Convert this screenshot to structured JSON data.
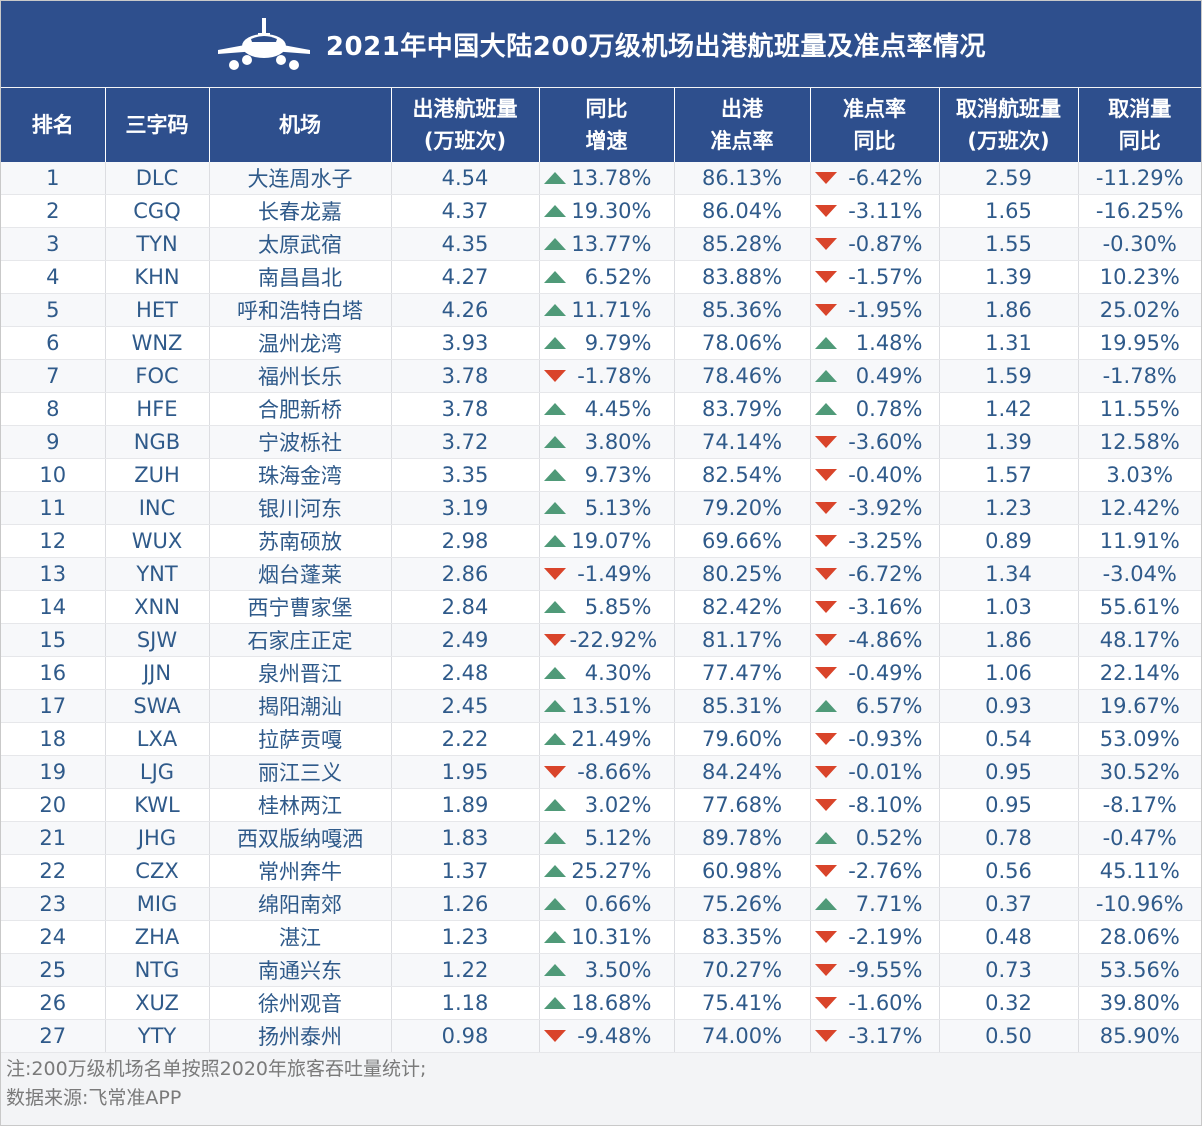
{
  "title": "2021年中国大陆200万级机场出港航班量及准点率情况",
  "colors": {
    "header_bg": "#2e4f8d",
    "up": "#4f9a78",
    "down": "#d9442a",
    "text": "#2f5a8a"
  },
  "columns": [
    {
      "l1": "排名",
      "l2": ""
    },
    {
      "l1": "三字码",
      "l2": ""
    },
    {
      "l1": "机场",
      "l2": ""
    },
    {
      "l1": "出港航班量",
      "l2": "(万班次)"
    },
    {
      "l1": "同比",
      "l2": "增速"
    },
    {
      "l1": "出港",
      "l2": "准点率"
    },
    {
      "l1": "准点率",
      "l2": "同比"
    },
    {
      "l1": "取消航班量",
      "l2": "(万班次)"
    },
    {
      "l1": "取消量",
      "l2": "同比"
    }
  ],
  "rows": [
    {
      "rank": "1",
      "code": "DLC",
      "airport": "大连周水子",
      "flights": "4.54",
      "growth": "13.78%",
      "growth_dir": "up",
      "ontime": "86.13%",
      "ontime_yoy": "-6.42%",
      "ontime_dir": "down",
      "cancel": "2.59",
      "cancel_yoy": "-11.29%"
    },
    {
      "rank": "2",
      "code": "CGQ",
      "airport": "长春龙嘉",
      "flights": "4.37",
      "growth": "19.30%",
      "growth_dir": "up",
      "ontime": "86.04%",
      "ontime_yoy": "-3.11%",
      "ontime_dir": "down",
      "cancel": "1.65",
      "cancel_yoy": "-16.25%"
    },
    {
      "rank": "3",
      "code": "TYN",
      "airport": "太原武宿",
      "flights": "4.35",
      "growth": "13.77%",
      "growth_dir": "up",
      "ontime": "85.28%",
      "ontime_yoy": "-0.87%",
      "ontime_dir": "down",
      "cancel": "1.55",
      "cancel_yoy": "-0.30%"
    },
    {
      "rank": "4",
      "code": "KHN",
      "airport": "南昌昌北",
      "flights": "4.27",
      "growth": "6.52%",
      "growth_dir": "up",
      "ontime": "83.88%",
      "ontime_yoy": "-1.57%",
      "ontime_dir": "down",
      "cancel": "1.39",
      "cancel_yoy": "10.23%"
    },
    {
      "rank": "5",
      "code": "HET",
      "airport": "呼和浩特白塔",
      "flights": "4.26",
      "growth": "11.71%",
      "growth_dir": "up",
      "ontime": "85.36%",
      "ontime_yoy": "-1.95%",
      "ontime_dir": "down",
      "cancel": "1.86",
      "cancel_yoy": "25.02%"
    },
    {
      "rank": "6",
      "code": "WNZ",
      "airport": "温州龙湾",
      "flights": "3.93",
      "growth": "9.79%",
      "growth_dir": "up",
      "ontime": "78.06%",
      "ontime_yoy": "1.48%",
      "ontime_dir": "up",
      "cancel": "1.31",
      "cancel_yoy": "19.95%"
    },
    {
      "rank": "7",
      "code": "FOC",
      "airport": "福州长乐",
      "flights": "3.78",
      "growth": "-1.78%",
      "growth_dir": "down",
      "ontime": "78.46%",
      "ontime_yoy": "0.49%",
      "ontime_dir": "up",
      "cancel": "1.59",
      "cancel_yoy": "-1.78%"
    },
    {
      "rank": "8",
      "code": "HFE",
      "airport": "合肥新桥",
      "flights": "3.78",
      "growth": "4.45%",
      "growth_dir": "up",
      "ontime": "83.79%",
      "ontime_yoy": "0.78%",
      "ontime_dir": "up",
      "cancel": "1.42",
      "cancel_yoy": "11.55%"
    },
    {
      "rank": "9",
      "code": "NGB",
      "airport": "宁波栎社",
      "flights": "3.72",
      "growth": "3.80%",
      "growth_dir": "up",
      "ontime": "74.14%",
      "ontime_yoy": "-3.60%",
      "ontime_dir": "down",
      "cancel": "1.39",
      "cancel_yoy": "12.58%"
    },
    {
      "rank": "10",
      "code": "ZUH",
      "airport": "珠海金湾",
      "flights": "3.35",
      "growth": "9.73%",
      "growth_dir": "up",
      "ontime": "82.54%",
      "ontime_yoy": "-0.40%",
      "ontime_dir": "down",
      "cancel": "1.57",
      "cancel_yoy": "3.03%"
    },
    {
      "rank": "11",
      "code": "INC",
      "airport": "银川河东",
      "flights": "3.19",
      "growth": "5.13%",
      "growth_dir": "up",
      "ontime": "79.20%",
      "ontime_yoy": "-3.92%",
      "ontime_dir": "down",
      "cancel": "1.23",
      "cancel_yoy": "12.42%"
    },
    {
      "rank": "12",
      "code": "WUX",
      "airport": "苏南硕放",
      "flights": "2.98",
      "growth": "19.07%",
      "growth_dir": "up",
      "ontime": "69.66%",
      "ontime_yoy": "-3.25%",
      "ontime_dir": "down",
      "cancel": "0.89",
      "cancel_yoy": "11.91%"
    },
    {
      "rank": "13",
      "code": "YNT",
      "airport": "烟台蓬莱",
      "flights": "2.86",
      "growth": "-1.49%",
      "growth_dir": "down",
      "ontime": "80.25%",
      "ontime_yoy": "-6.72%",
      "ontime_dir": "down",
      "cancel": "1.34",
      "cancel_yoy": "-3.04%"
    },
    {
      "rank": "14",
      "code": "XNN",
      "airport": "西宁曹家堡",
      "flights": "2.84",
      "growth": "5.85%",
      "growth_dir": "up",
      "ontime": "82.42%",
      "ontime_yoy": "-3.16%",
      "ontime_dir": "down",
      "cancel": "1.03",
      "cancel_yoy": "55.61%"
    },
    {
      "rank": "15",
      "code": "SJW",
      "airport": "石家庄正定",
      "flights": "2.49",
      "growth": "-22.92%",
      "growth_dir": "down",
      "ontime": "81.17%",
      "ontime_yoy": "-4.86%",
      "ontime_dir": "down",
      "cancel": "1.86",
      "cancel_yoy": "48.17%"
    },
    {
      "rank": "16",
      "code": "JJN",
      "airport": "泉州晋江",
      "flights": "2.48",
      "growth": "4.30%",
      "growth_dir": "up",
      "ontime": "77.47%",
      "ontime_yoy": "-0.49%",
      "ontime_dir": "down",
      "cancel": "1.06",
      "cancel_yoy": "22.14%"
    },
    {
      "rank": "17",
      "code": "SWA",
      "airport": "揭阳潮汕",
      "flights": "2.45",
      "growth": "13.51%",
      "growth_dir": "up",
      "ontime": "85.31%",
      "ontime_yoy": "6.57%",
      "ontime_dir": "up",
      "cancel": "0.93",
      "cancel_yoy": "19.67%"
    },
    {
      "rank": "18",
      "code": "LXA",
      "airport": "拉萨贡嘎",
      "flights": "2.22",
      "growth": "21.49%",
      "growth_dir": "up",
      "ontime": "79.60%",
      "ontime_yoy": "-0.93%",
      "ontime_dir": "down",
      "cancel": "0.54",
      "cancel_yoy": "53.09%"
    },
    {
      "rank": "19",
      "code": "LJG",
      "airport": "丽江三义",
      "flights": "1.95",
      "growth": "-8.66%",
      "growth_dir": "down",
      "ontime": "84.24%",
      "ontime_yoy": "-0.01%",
      "ontime_dir": "down",
      "cancel": "0.95",
      "cancel_yoy": "30.52%"
    },
    {
      "rank": "20",
      "code": "KWL",
      "airport": "桂林两江",
      "flights": "1.89",
      "growth": "3.02%",
      "growth_dir": "up",
      "ontime": "77.68%",
      "ontime_yoy": "-8.10%",
      "ontime_dir": "down",
      "cancel": "0.95",
      "cancel_yoy": "-8.17%"
    },
    {
      "rank": "21",
      "code": "JHG",
      "airport": "西双版纳嘎洒",
      "flights": "1.83",
      "growth": "5.12%",
      "growth_dir": "up",
      "ontime": "89.78%",
      "ontime_yoy": "0.52%",
      "ontime_dir": "up",
      "cancel": "0.78",
      "cancel_yoy": "-0.47%"
    },
    {
      "rank": "22",
      "code": "CZX",
      "airport": "常州奔牛",
      "flights": "1.37",
      "growth": "25.27%",
      "growth_dir": "up",
      "ontime": "60.98%",
      "ontime_yoy": "-2.76%",
      "ontime_dir": "down",
      "cancel": "0.56",
      "cancel_yoy": "45.11%"
    },
    {
      "rank": "23",
      "code": "MIG",
      "airport": "绵阳南郊",
      "flights": "1.26",
      "growth": "0.66%",
      "growth_dir": "up",
      "ontime": "75.26%",
      "ontime_yoy": "7.71%",
      "ontime_dir": "up",
      "cancel": "0.37",
      "cancel_yoy": "-10.96%"
    },
    {
      "rank": "24",
      "code": "ZHA",
      "airport": "湛江",
      "flights": "1.23",
      "growth": "10.31%",
      "growth_dir": "up",
      "ontime": "83.35%",
      "ontime_yoy": "-2.19%",
      "ontime_dir": "down",
      "cancel": "0.48",
      "cancel_yoy": "28.06%"
    },
    {
      "rank": "25",
      "code": "NTG",
      "airport": "南通兴东",
      "flights": "1.22",
      "growth": "3.50%",
      "growth_dir": "up",
      "ontime": "70.27%",
      "ontime_yoy": "-9.55%",
      "ontime_dir": "down",
      "cancel": "0.73",
      "cancel_yoy": "53.56%"
    },
    {
      "rank": "26",
      "code": "XUZ",
      "airport": "徐州观音",
      "flights": "1.18",
      "growth": "18.68%",
      "growth_dir": "up",
      "ontime": "75.41%",
      "ontime_yoy": "-1.60%",
      "ontime_dir": "down",
      "cancel": "0.32",
      "cancel_yoy": "39.80%"
    },
    {
      "rank": "27",
      "code": "YTY",
      "airport": "扬州泰州",
      "flights": "0.98",
      "growth": "-9.48%",
      "growth_dir": "down",
      "ontime": "74.00%",
      "ontime_yoy": "-3.17%",
      "ontime_dir": "down",
      "cancel": "0.50",
      "cancel_yoy": "85.90%"
    }
  ],
  "notes": [
    "注:200万级机场名单按照2020年旅客吞吐量统计;",
    "数据来源:飞常准APP"
  ]
}
